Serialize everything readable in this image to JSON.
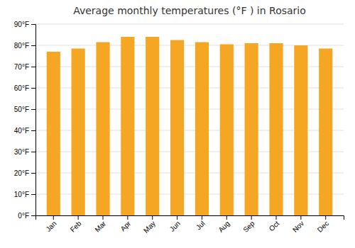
{
  "chart_data": {
    "type": "bar",
    "title": "Average monthly temperatures (°F ) in Rosario",
    "categories": [
      "Jan",
      "Feb",
      "Mar",
      "Apr",
      "May",
      "Jun",
      "Jul",
      "Aug",
      "Sep",
      "Oct",
      "Nov",
      "Dec"
    ],
    "values": [
      77,
      78.5,
      81.5,
      84,
      84,
      82.5,
      81.5,
      80.5,
      81,
      81,
      80,
      78.5
    ],
    "color": "#F5A623",
    "ylim": [
      0,
      90
    ],
    "yticks": [
      {
        "value": 0,
        "label": "0°F"
      },
      {
        "value": 10,
        "label": "10°F"
      },
      {
        "value": 20,
        "label": "20°F"
      },
      {
        "value": 30,
        "label": "30°F"
      },
      {
        "value": 40,
        "label": "40°F"
      },
      {
        "value": 50,
        "label": "50°F"
      },
      {
        "value": 60,
        "label": "60°F"
      },
      {
        "value": 70,
        "label": "70°F"
      },
      {
        "value": 80,
        "label": "80°F"
      },
      {
        "value": 90,
        "label": "90°F"
      }
    ],
    "grid": true
  }
}
